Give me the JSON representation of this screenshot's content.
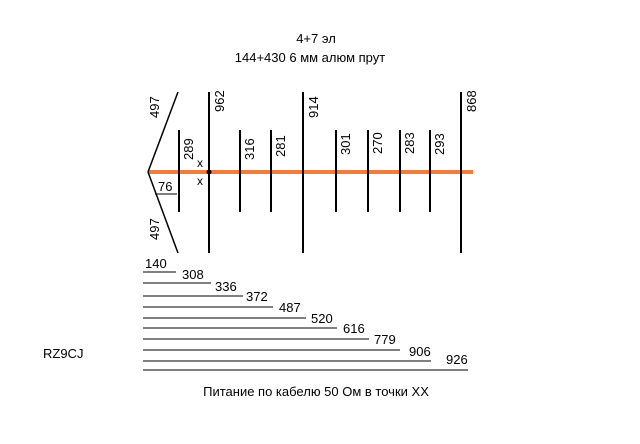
{
  "title": {
    "line1": "4+7 эл",
    "line2": "144+430   6 мм алюм прут"
  },
  "boom": {
    "color": "#f07d3c"
  },
  "uhf_elements": [
    {
      "label": "289"
    },
    {
      "label": "316"
    },
    {
      "label": "281"
    },
    {
      "label": "301"
    },
    {
      "label": "270"
    },
    {
      "label": "283"
    },
    {
      "label": "293"
    }
  ],
  "vhf_elements": [
    {
      "label": "962"
    },
    {
      "label": "914"
    },
    {
      "label": "868"
    }
  ],
  "v_reflector": {
    "upper_label": "497",
    "lower_label": "497",
    "spread_label": "76"
  },
  "feed_marks": [
    "x",
    "x"
  ],
  "spacings": [
    "140",
    "308",
    "336",
    "372",
    "487",
    "520",
    "616",
    "779",
    "906",
    "926"
  ],
  "callsign": "RZ9CJ",
  "caption": "Питание по кабелю 50 Ом в точки XX"
}
